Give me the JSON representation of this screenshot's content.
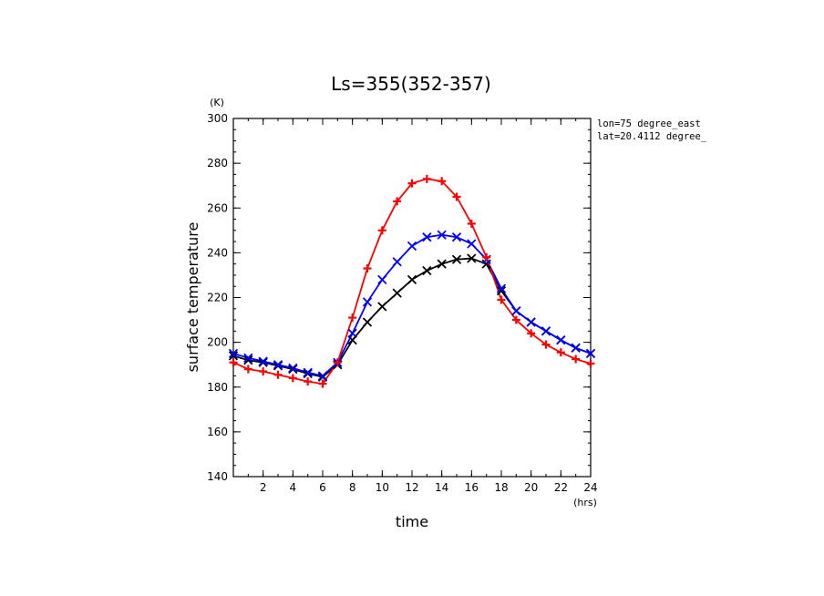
{
  "chart_data": {
    "type": "line",
    "title": "Ls=355(352-357)",
    "xlabel": "time",
    "ylabel": "surface temperature",
    "x_unit": "(hrs)",
    "y_unit": "(K)",
    "xlim": [
      0,
      24
    ],
    "ylim": [
      140,
      300
    ],
    "x_ticks": [
      2,
      4,
      6,
      8,
      10,
      12,
      14,
      16,
      18,
      20,
      22,
      24
    ],
    "y_ticks": [
      140,
      160,
      180,
      200,
      220,
      240,
      260,
      280,
      300
    ],
    "grid": false,
    "annotations": [
      "lon=75 degree_east",
      "lat=20.4112 degree_"
    ],
    "colors": {
      "red": "#ff0000",
      "blue": "#0000ff",
      "black": "#000000"
    },
    "series": [
      {
        "color": "red",
        "marker": "plus",
        "x": [
          0,
          1,
          2,
          3,
          4,
          5,
          6,
          7,
          8,
          9,
          10,
          11,
          12,
          13,
          14,
          15,
          16,
          17,
          18,
          19,
          20,
          21,
          22,
          23,
          24
        ],
        "values": [
          191,
          188,
          187,
          185.5,
          184,
          182.5,
          181.5,
          191,
          211,
          233,
          250,
          263,
          271,
          273,
          272,
          265,
          253,
          238,
          219,
          210,
          204,
          199,
          195.5,
          192.5,
          190.5
        ]
      },
      {
        "color": "blue",
        "marker": "x",
        "x": [
          0,
          1,
          2,
          3,
          4,
          5,
          6,
          7,
          8,
          9,
          10,
          11,
          12,
          13,
          14,
          15,
          16,
          17,
          18,
          19,
          20,
          21,
          22,
          23,
          24
        ],
        "values": [
          195,
          193,
          191.5,
          190,
          188.5,
          186.5,
          185,
          191,
          204,
          218,
          228,
          236,
          243,
          247,
          248,
          247,
          244,
          237,
          224,
          214,
          209,
          205,
          201,
          197.5,
          195
        ]
      },
      {
        "color": "black",
        "marker": "x",
        "x": [
          0,
          1,
          2,
          3,
          4,
          5,
          6,
          7,
          8,
          9,
          10,
          11,
          12,
          13,
          14,
          15,
          16,
          17,
          18,
          19,
          20,
          21,
          22,
          23,
          24
        ],
        "values": [
          194,
          192,
          191,
          189.5,
          188,
          186,
          184.5,
          190,
          201,
          209,
          216,
          222,
          228,
          232,
          235,
          237,
          237.5,
          235,
          223,
          214,
          209,
          205,
          201,
          197.5,
          195
        ]
      }
    ]
  }
}
